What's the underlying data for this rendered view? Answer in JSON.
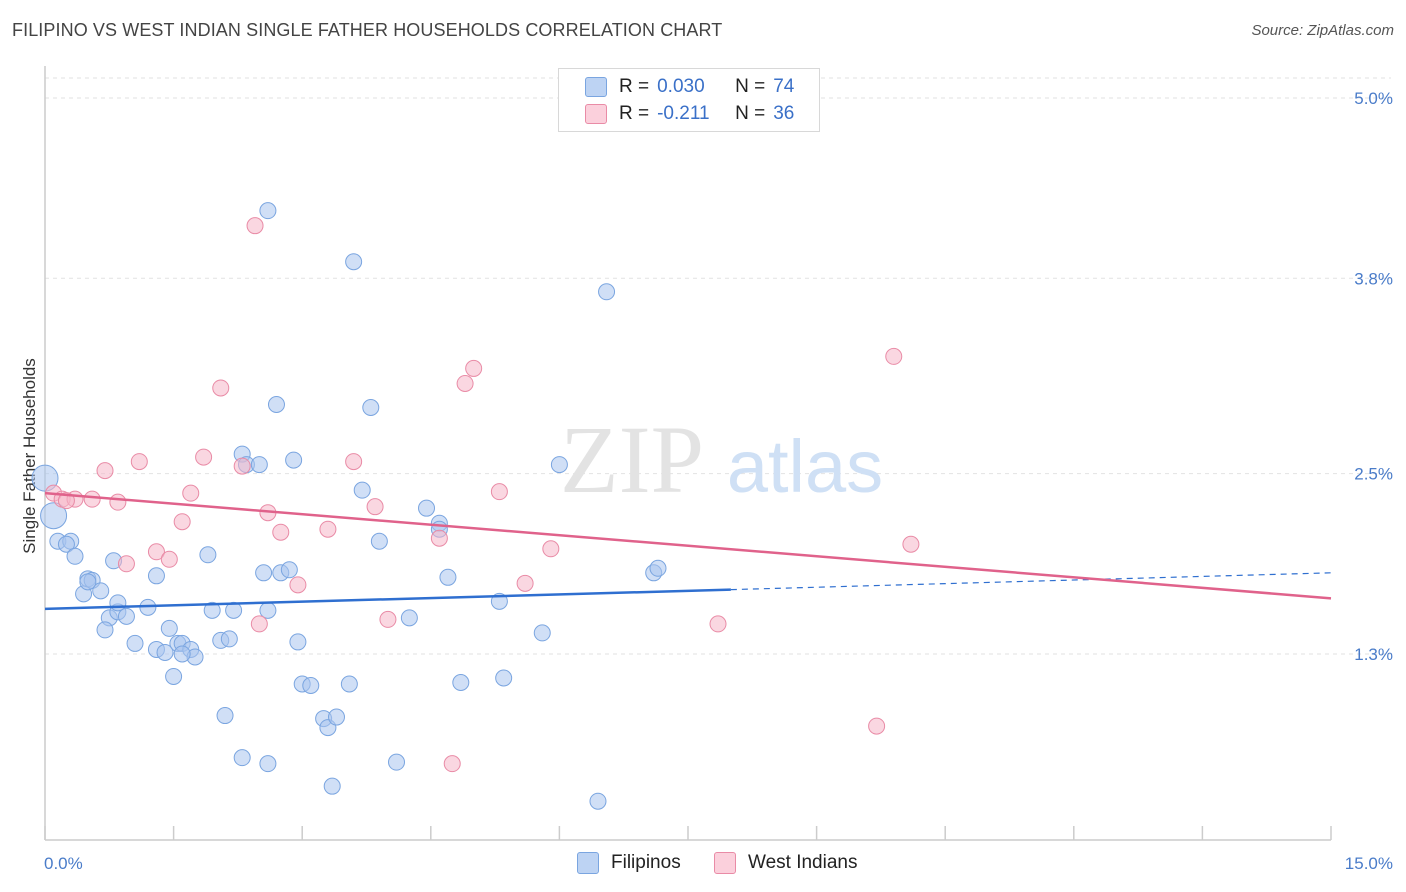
{
  "header": {
    "title": "FILIPINO VS WEST INDIAN SINGLE FATHER HOUSEHOLDS CORRELATION CHART",
    "source": "Source: ZipAtlas.com"
  },
  "watermark": {
    "zip": "ZIP",
    "atlas": "atlas"
  },
  "legend": {
    "rows": [
      {
        "r_label": "R =",
        "r_value": "0.030",
        "n_label": "N =",
        "n_value": "74",
        "color": "#a9c5ee"
      },
      {
        "r_label": "R =",
        "r_value": "-0.211",
        "n_label": "N =",
        "n_value": "36",
        "color": "#f6b6c8"
      }
    ]
  },
  "chart_data": {
    "type": "scatter",
    "xlabel": "",
    "ylabel": "Single Father Households",
    "xlim": [
      0,
      15
    ],
    "ylim": [
      0,
      5.2
    ],
    "x_tick_labels": [
      "0.0%",
      "15.0%"
    ],
    "y_ticks": [
      1.3,
      2.5,
      3.8,
      5.0
    ],
    "y_tick_labels": [
      "1.3%",
      "2.5%",
      "3.8%",
      "5.0%"
    ],
    "grid": "horizontal dashed",
    "series": [
      {
        "name": "Filipinos",
        "color": "#a9c5ee",
        "stroke": "#7aa5e0",
        "trend_color": "#2f6fd0",
        "trend": {
          "x0": 0,
          "y0": 1.6,
          "x1": 15,
          "y1": 1.84,
          "solid_until": 8
        },
        "points": [
          [
            0.0,
            2.47
          ],
          [
            0.1,
            2.22
          ],
          [
            0.15,
            2.05
          ],
          [
            0.3,
            2.05
          ],
          [
            0.25,
            2.03
          ],
          [
            0.35,
            1.95
          ],
          [
            0.45,
            1.7
          ],
          [
            0.5,
            1.8
          ],
          [
            0.55,
            1.79
          ],
          [
            0.65,
            1.72
          ],
          [
            0.8,
            1.92
          ],
          [
            0.75,
            1.54
          ],
          [
            0.85,
            1.58
          ],
          [
            0.95,
            1.55
          ],
          [
            0.7,
            1.46
          ],
          [
            1.05,
            1.37
          ],
          [
            1.2,
            1.61
          ],
          [
            1.3,
            1.33
          ],
          [
            1.4,
            1.31
          ],
          [
            1.45,
            1.47
          ],
          [
            1.55,
            1.37
          ],
          [
            1.6,
            1.37
          ],
          [
            1.7,
            1.33
          ],
          [
            1.75,
            1.28
          ],
          [
            1.3,
            1.82
          ],
          [
            1.9,
            1.96
          ],
          [
            1.95,
            1.59
          ],
          [
            2.05,
            1.39
          ],
          [
            2.15,
            1.4
          ],
          [
            2.2,
            1.59
          ],
          [
            2.3,
            2.63
          ],
          [
            2.35,
            2.56
          ],
          [
            2.55,
            1.84
          ],
          [
            2.6,
            1.59
          ],
          [
            2.75,
            1.84
          ],
          [
            2.85,
            1.86
          ],
          [
            2.6,
            4.25
          ],
          [
            2.7,
            2.96
          ],
          [
            2.9,
            2.59
          ],
          [
            2.95,
            1.38
          ],
          [
            3.0,
            1.1
          ],
          [
            3.1,
            1.09
          ],
          [
            3.25,
            0.87
          ],
          [
            3.3,
            0.81
          ],
          [
            3.4,
            0.88
          ],
          [
            3.55,
            1.1
          ],
          [
            3.6,
            3.91
          ],
          [
            3.7,
            2.39
          ],
          [
            3.8,
            2.94
          ],
          [
            3.9,
            2.05
          ],
          [
            4.1,
            0.58
          ],
          [
            4.25,
            1.54
          ],
          [
            4.45,
            2.27
          ],
          [
            4.6,
            2.17
          ],
          [
            4.6,
            2.13
          ],
          [
            4.7,
            1.81
          ],
          [
            4.85,
            1.11
          ],
          [
            5.3,
            1.65
          ],
          [
            5.35,
            1.14
          ],
          [
            5.8,
            1.44
          ],
          [
            6.0,
            2.56
          ],
          [
            6.45,
            0.32
          ],
          [
            6.55,
            3.71
          ],
          [
            7.1,
            1.84
          ],
          [
            7.15,
            1.87
          ],
          [
            2.1,
            0.89
          ],
          [
            2.3,
            0.61
          ],
          [
            2.6,
            0.57
          ],
          [
            3.35,
            0.42
          ],
          [
            1.5,
            1.15
          ],
          [
            1.6,
            1.3
          ],
          [
            0.5,
            1.78
          ],
          [
            2.5,
            2.56
          ],
          [
            0.85,
            1.64
          ]
        ]
      },
      {
        "name": "West Indians",
        "color": "#f6b6c8",
        "stroke": "#e98ba6",
        "trend_color": "#e0628b",
        "trend": {
          "x0": 0,
          "y0": 2.37,
          "x1": 15,
          "y1": 1.67
        },
        "points": [
          [
            0.1,
            2.37
          ],
          [
            0.2,
            2.33
          ],
          [
            0.35,
            2.33
          ],
          [
            0.55,
            2.33
          ],
          [
            0.7,
            2.52
          ],
          [
            0.85,
            2.31
          ],
          [
            0.95,
            1.9
          ],
          [
            1.1,
            2.58
          ],
          [
            1.3,
            1.98
          ],
          [
            1.45,
            1.93
          ],
          [
            1.6,
            2.18
          ],
          [
            1.7,
            2.37
          ],
          [
            1.85,
            2.61
          ],
          [
            2.05,
            3.07
          ],
          [
            2.3,
            2.55
          ],
          [
            2.45,
            4.15
          ],
          [
            2.5,
            1.5
          ],
          [
            2.6,
            2.24
          ],
          [
            2.75,
            2.11
          ],
          [
            2.95,
            1.76
          ],
          [
            3.3,
            2.13
          ],
          [
            3.6,
            2.58
          ],
          [
            3.85,
            2.28
          ],
          [
            4.0,
            1.53
          ],
          [
            4.6,
            2.07
          ],
          [
            4.75,
            0.57
          ],
          [
            4.9,
            3.1
          ],
          [
            5.0,
            3.2
          ],
          [
            5.3,
            2.38
          ],
          [
            5.6,
            1.77
          ],
          [
            5.9,
            2.0
          ],
          [
            7.85,
            1.5
          ],
          [
            9.7,
            0.82
          ],
          [
            9.9,
            3.28
          ],
          [
            10.1,
            2.03
          ],
          [
            0.25,
            2.32
          ]
        ]
      }
    ]
  },
  "bottom_legend": {
    "items": [
      "Filipinos",
      "West Indians"
    ]
  }
}
